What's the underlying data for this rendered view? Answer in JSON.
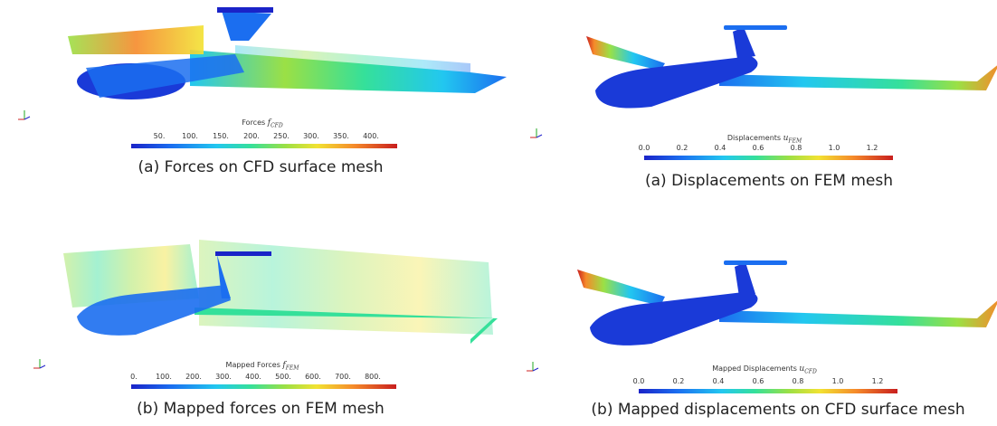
{
  "panels": [
    {
      "id": "forces-cfd",
      "caption": "(a) Forces on CFD surface mesh",
      "colorbar": {
        "label": "Forces",
        "symbol": "f",
        "subscript": "CFD",
        "ticks": [
          "50.",
          "100.",
          "150.",
          "200.",
          "250.",
          "300.",
          "350.",
          "400."
        ]
      }
    },
    {
      "id": "displacements-fem",
      "caption": "(a) Displacements on FEM mesh",
      "colorbar": {
        "label": "Displacements",
        "symbol": "u",
        "subscript": "FEM",
        "ticks": [
          "0.0",
          "0.2",
          "0.4",
          "0.6",
          "0.8",
          "1.0",
          "1.2"
        ]
      }
    },
    {
      "id": "mapped-forces-fem",
      "caption": "(b) Mapped forces on FEM mesh",
      "colorbar": {
        "label": "Mapped Forces",
        "symbol": "f",
        "subscript": "FEM",
        "ticks": [
          "0.",
          "100.",
          "200.",
          "300.",
          "400.",
          "500.",
          "600.",
          "700.",
          "800."
        ]
      }
    },
    {
      "id": "mapped-displacements-cfd",
      "caption": "(b) Mapped displacements on CFD surface mesh",
      "colorbar": {
        "label": "Mapped Displacements",
        "symbol": "u",
        "subscript": "CFD",
        "ticks": [
          "0.0",
          "0.2",
          "0.4",
          "0.6",
          "0.8",
          "1.0",
          "1.2"
        ]
      }
    }
  ],
  "colormap": [
    "#1a23c8",
    "#1b6ef0",
    "#22c7f0",
    "#35e09a",
    "#9be045",
    "#f2e232",
    "#f58a2a",
    "#c81e1e"
  ],
  "icons": {
    "axes": "xyz-axes-icon"
  }
}
